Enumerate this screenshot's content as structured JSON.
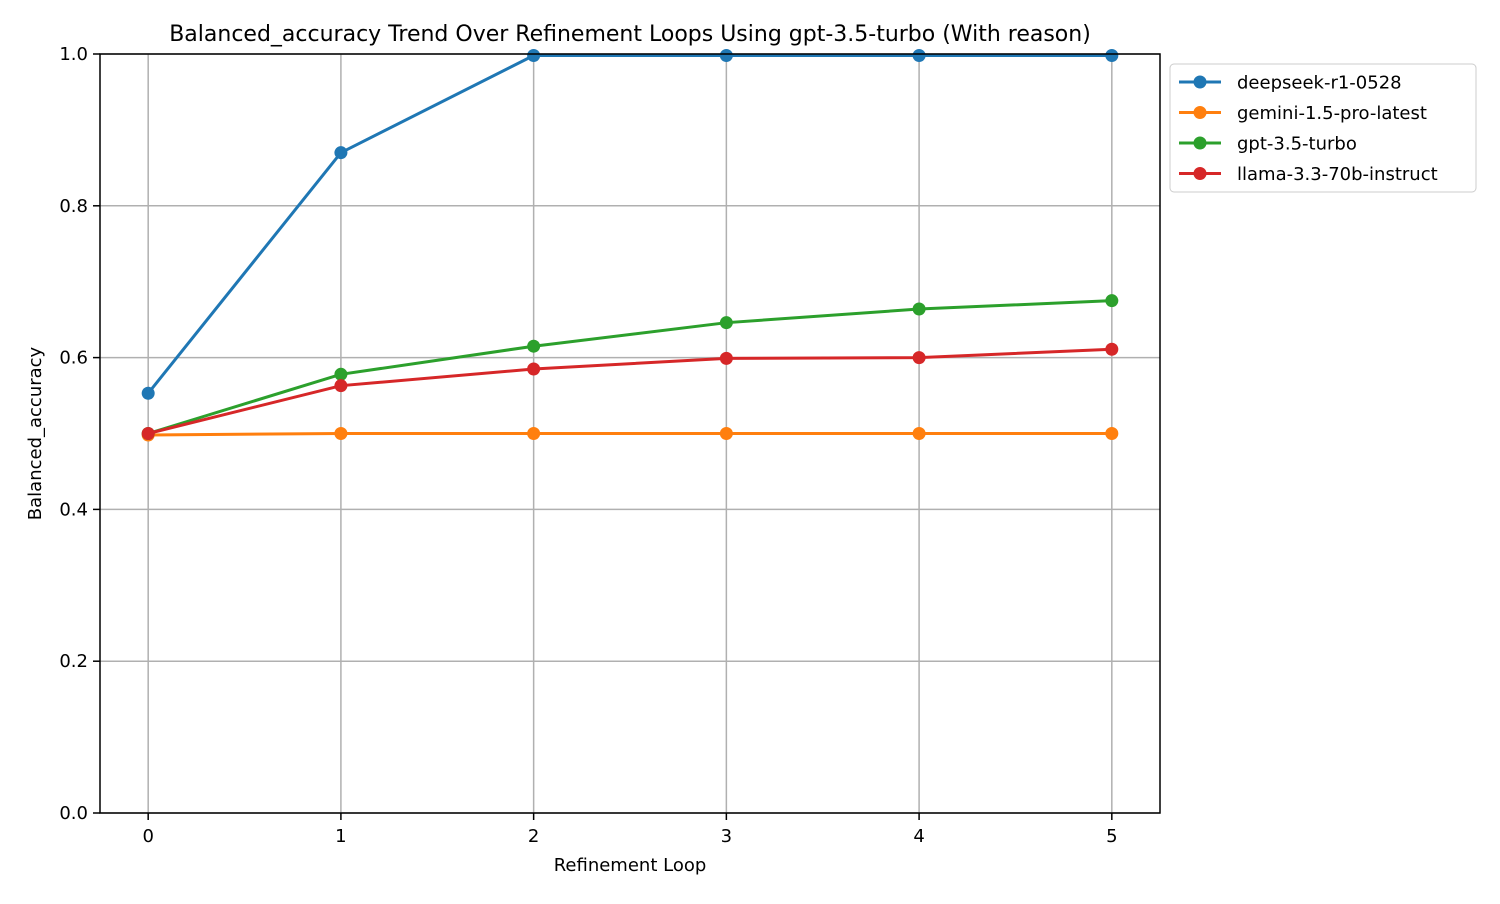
{
  "chart_data": {
    "type": "line",
    "title": "Balanced_accuracy Trend Over Refinement Loops Using gpt-3.5-turbo (With reason)",
    "xlabel": "Refinement Loop",
    "ylabel": "Balanced_accuracy",
    "x": [
      0,
      1,
      2,
      3,
      4,
      5
    ],
    "x_ticks": [
      "0",
      "1",
      "2",
      "3",
      "4",
      "5"
    ],
    "xlim": [
      -0.25,
      5.25
    ],
    "ylim": [
      0.0,
      1.0
    ],
    "y_ticks": [
      "0.0",
      "0.2",
      "0.4",
      "0.6",
      "0.8",
      "1.0"
    ],
    "grid": true,
    "legend_position": "outside-top-right",
    "series": [
      {
        "name": "deepseek-r1-0528",
        "color": "#1f77b4",
        "values": [
          0.553,
          0.87,
          0.998,
          0.998,
          0.998,
          0.998
        ]
      },
      {
        "name": "gemini-1.5-pro-latest",
        "color": "#ff7f0e",
        "values": [
          0.498,
          0.5,
          0.5,
          0.5,
          0.5,
          0.5
        ]
      },
      {
        "name": "gpt-3.5-turbo",
        "color": "#2ca02c",
        "values": [
          0.5,
          0.578,
          0.615,
          0.646,
          0.664,
          0.675
        ]
      },
      {
        "name": "llama-3.3-70b-instruct",
        "color": "#d62728",
        "values": [
          0.5,
          0.563,
          0.585,
          0.599,
          0.6,
          0.611
        ]
      }
    ]
  }
}
